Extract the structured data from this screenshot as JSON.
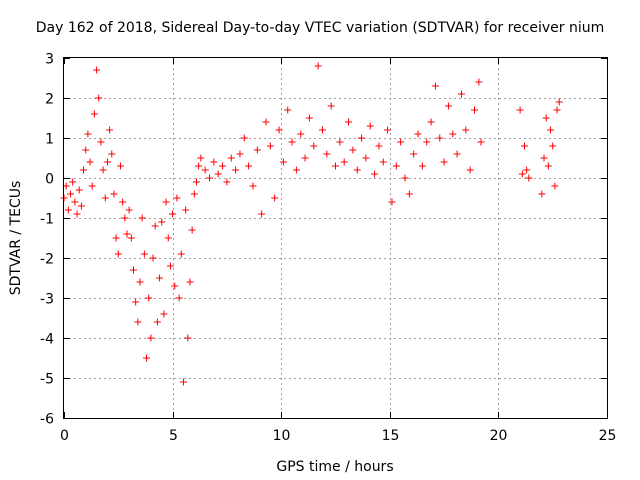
{
  "chart_data": {
    "type": "scatter",
    "title": "Day 162 of 2018, Sidereal Day-to-day VTEC variation (SDTVAR) for receiver nium",
    "xlabel": "GPS time / hours",
    "ylabel": "SDTVAR / TECUs",
    "xlim": [
      0,
      25
    ],
    "ylim": [
      -6,
      3
    ],
    "xticks": [
      0,
      5,
      10,
      15,
      20,
      25
    ],
    "yticks": [
      -6,
      -5,
      -4,
      -3,
      -2,
      -1,
      0,
      1,
      2,
      3
    ],
    "grid": true,
    "marker": "+",
    "color": "#ff0000",
    "series": [
      {
        "name": "SDTVAR",
        "x": [
          0.0,
          0.1,
          0.2,
          0.3,
          0.4,
          0.5,
          0.6,
          0.7,
          0.8,
          0.9,
          1.0,
          1.1,
          1.2,
          1.3,
          1.4,
          1.5,
          1.6,
          1.7,
          1.8,
          1.9,
          2.0,
          2.1,
          2.2,
          2.3,
          2.4,
          2.5,
          2.6,
          2.7,
          2.8,
          2.9,
          3.0,
          3.1,
          3.2,
          3.3,
          3.4,
          3.5,
          3.6,
          3.7,
          3.8,
          3.9,
          4.0,
          4.1,
          4.2,
          4.3,
          4.4,
          4.5,
          4.6,
          4.7,
          4.8,
          4.9,
          5.0,
          5.1,
          5.2,
          5.3,
          5.4,
          5.5,
          5.6,
          5.7,
          5.8,
          5.9,
          6.0,
          6.1,
          6.2,
          6.3,
          6.5,
          6.7,
          6.9,
          7.1,
          7.3,
          7.5,
          7.7,
          7.9,
          8.1,
          8.3,
          8.5,
          8.7,
          8.9,
          9.1,
          9.3,
          9.5,
          9.7,
          9.9,
          10.1,
          10.3,
          10.5,
          10.7,
          10.9,
          11.1,
          11.3,
          11.5,
          11.7,
          11.9,
          12.1,
          12.3,
          12.5,
          12.7,
          12.9,
          13.1,
          13.3,
          13.5,
          13.7,
          13.9,
          14.1,
          14.3,
          14.5,
          14.7,
          14.9,
          15.1,
          15.3,
          15.5,
          15.7,
          15.9,
          16.1,
          16.3,
          16.5,
          16.7,
          16.9,
          17.1,
          17.3,
          17.5,
          17.7,
          17.9,
          18.1,
          18.3,
          18.5,
          18.7,
          18.9,
          19.1,
          19.2,
          21.0,
          21.1,
          21.2,
          21.3,
          21.4,
          22.0,
          22.1,
          22.2,
          22.3,
          22.4,
          22.5,
          22.6,
          22.7,
          22.8
        ],
        "y": [
          -0.5,
          -0.2,
          -0.8,
          -0.4,
          -0.1,
          -0.6,
          -0.9,
          -0.3,
          -0.7,
          0.2,
          0.7,
          1.1,
          0.4,
          -0.2,
          1.6,
          2.7,
          2.0,
          0.9,
          0.2,
          -0.5,
          0.4,
          1.2,
          0.6,
          -0.4,
          -1.5,
          -1.9,
          0.3,
          -0.6,
          -1.0,
          -1.4,
          -0.8,
          -1.5,
          -2.3,
          -3.1,
          -3.6,
          -2.6,
          -1.0,
          -1.9,
          -4.5,
          -3.0,
          -4.0,
          -2.0,
          -1.2,
          -3.6,
          -2.5,
          -1.1,
          -3.4,
          -0.6,
          -1.5,
          -2.2,
          -0.9,
          -2.7,
          -0.5,
          -3.0,
          -1.9,
          -5.1,
          -0.8,
          -4.0,
          -2.6,
          -1.3,
          -0.4,
          -0.1,
          0.3,
          0.5,
          0.2,
          0.0,
          0.4,
          0.1,
          0.3,
          -0.1,
          0.5,
          0.2,
          0.6,
          1.0,
          0.3,
          -0.2,
          0.7,
          -0.9,
          1.4,
          0.8,
          -0.5,
          1.2,
          0.4,
          1.7,
          0.9,
          0.2,
          1.1,
          0.5,
          1.5,
          0.8,
          2.8,
          1.2,
          0.6,
          1.8,
          0.3,
          0.9,
          0.4,
          1.4,
          0.7,
          0.2,
          1.0,
          0.5,
          1.3,
          0.1,
          0.8,
          0.4,
          1.2,
          -0.6,
          0.3,
          0.9,
          0.0,
          -0.4,
          0.6,
          1.1,
          0.3,
          0.9,
          1.4,
          2.3,
          1.0,
          0.4,
          1.8,
          1.1,
          0.6,
          2.1,
          1.2,
          0.2,
          1.7,
          2.4,
          0.9,
          1.7,
          0.1,
          0.8,
          0.2,
          0.0,
          -0.4,
          0.5,
          1.5,
          0.3,
          1.2,
          0.8,
          -0.2,
          1.7,
          1.9
        ]
      }
    ]
  }
}
